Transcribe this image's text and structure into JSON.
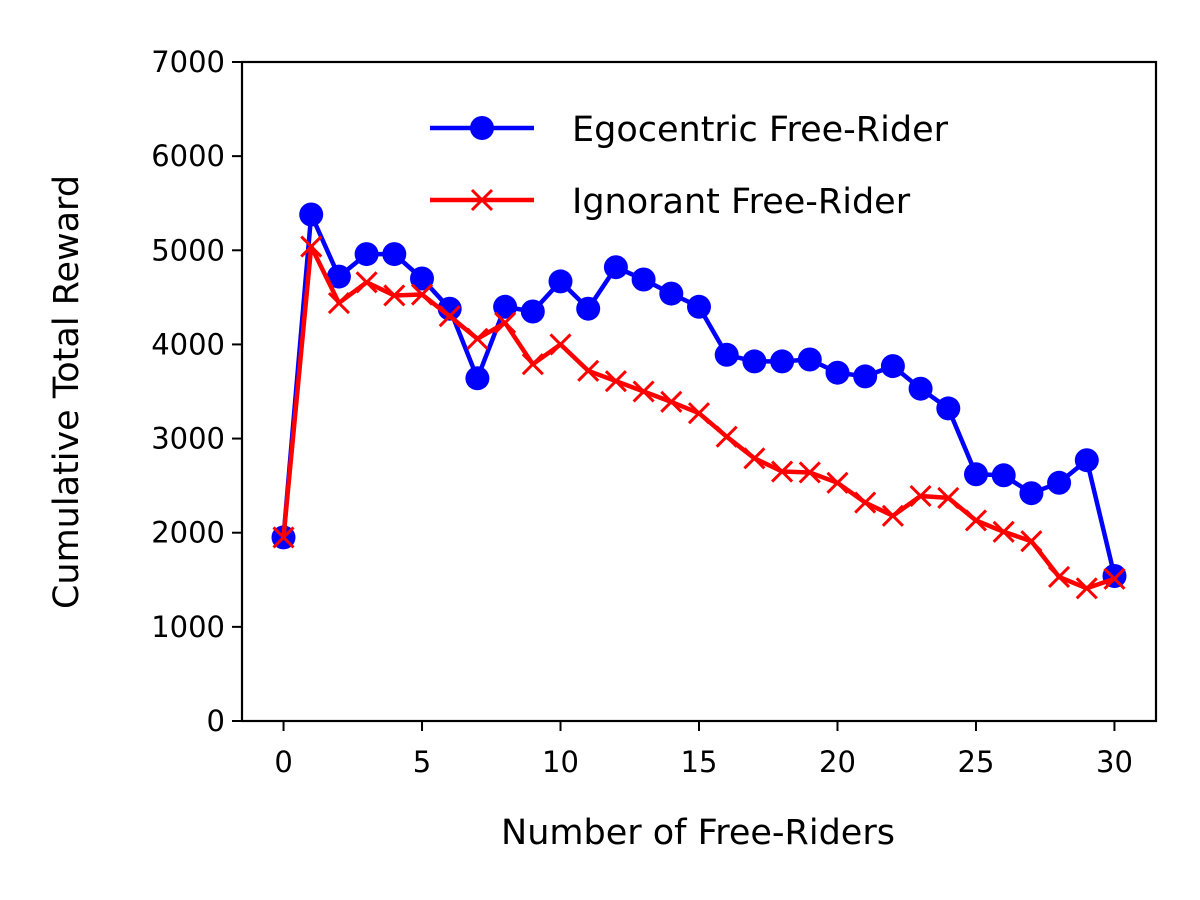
{
  "chart_data": {
    "type": "line",
    "title": "",
    "xlabel": "Number of Free-Riders",
    "ylabel": "Cumulative Total Reward",
    "xlim": [
      -1.5,
      31.5
    ],
    "ylim": [
      0,
      7000
    ],
    "xticks": [
      0,
      5,
      10,
      15,
      20,
      25,
      30
    ],
    "yticks": [
      0,
      1000,
      2000,
      3000,
      4000,
      5000,
      6000,
      7000
    ],
    "grid": false,
    "legend_position": "top-right",
    "x": [
      0,
      1,
      2,
      3,
      4,
      5,
      6,
      7,
      8,
      9,
      10,
      11,
      12,
      13,
      14,
      15,
      16,
      17,
      18,
      19,
      20,
      21,
      22,
      23,
      24,
      25,
      26,
      27,
      28,
      29,
      30
    ],
    "series": [
      {
        "name": "Egocentric Free-Rider",
        "color": "#0000ff",
        "marker": "circle",
        "values": [
          1950,
          5380,
          4720,
          4960,
          4960,
          4700,
          4380,
          3640,
          4400,
          4350,
          4670,
          4380,
          4820,
          4690,
          4540,
          4400,
          3890,
          3820,
          3820,
          3840,
          3700,
          3660,
          3770,
          3530,
          3320,
          2620,
          2610,
          2420,
          2530,
          2770,
          1540
        ]
      },
      {
        "name": "Ignorant Free-Rider",
        "color": "#ff0000",
        "marker": "x",
        "values": [
          1950,
          5040,
          4440,
          4660,
          4520,
          4530,
          4300,
          4060,
          4230,
          3790,
          4000,
          3720,
          3610,
          3500,
          3390,
          3270,
          3020,
          2790,
          2650,
          2640,
          2530,
          2320,
          2180,
          2390,
          2370,
          2130,
          2010,
          1910,
          1530,
          1410,
          1510
        ]
      }
    ]
  }
}
